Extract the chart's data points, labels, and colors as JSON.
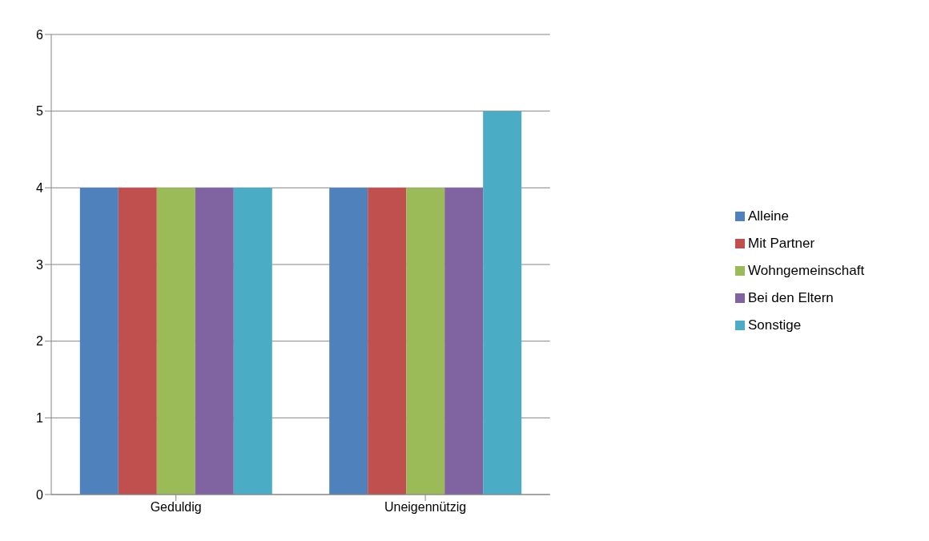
{
  "chart_data": {
    "type": "bar",
    "categories": [
      "Geduldig",
      "Uneigennützig"
    ],
    "series": [
      {
        "name": "Alleine",
        "color": "#4f81bd",
        "values": [
          4,
          4
        ]
      },
      {
        "name": "Mit Partner",
        "color": "#c0504d",
        "values": [
          4,
          4
        ]
      },
      {
        "name": "Wohngemeinschaft",
        "color": "#9bbb59",
        "values": [
          4,
          4
        ]
      },
      {
        "name": "Bei den Eltern",
        "color": "#8064a2",
        "values": [
          4,
          4
        ]
      },
      {
        "name": "Sonstige",
        "color": "#4bacc6",
        "values": [
          4,
          5
        ]
      }
    ],
    "ylim": [
      0,
      6
    ],
    "yticks": [
      0,
      1,
      2,
      3,
      4,
      5,
      6
    ],
    "grid": "y",
    "legend": "right"
  }
}
